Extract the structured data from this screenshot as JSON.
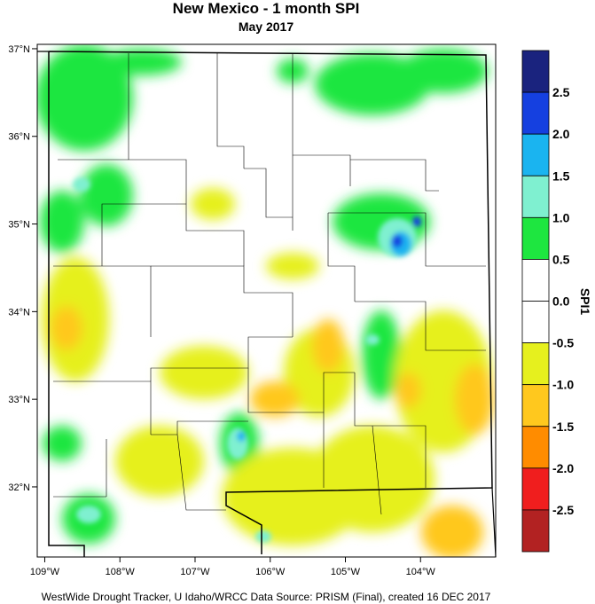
{
  "title": "New Mexico - 1 month SPI",
  "subtitle": "May 2017",
  "credit": "WestWide Drought Tracker, U Idaho/WRCC Data Source: PRISM (Final), created 16 DEC 2017",
  "map": {
    "region": "New Mexico",
    "variable": "SPI1",
    "lat_range": [
      31.2,
      37.05
    ],
    "lon_range": [
      -109.1,
      -103.0
    ],
    "lat_ticks": [
      {
        "value": 32,
        "label": "32°N"
      },
      {
        "value": 33,
        "label": "33°N"
      },
      {
        "value": 34,
        "label": "34°N"
      },
      {
        "value": 35,
        "label": "35°N"
      },
      {
        "value": 36,
        "label": "36°N"
      },
      {
        "value": 37,
        "label": "37°N"
      }
    ],
    "lon_ticks": [
      {
        "value": -109,
        "label": "109°W"
      },
      {
        "value": -108,
        "label": "108°W"
      },
      {
        "value": -107,
        "label": "107°W"
      },
      {
        "value": -106,
        "label": "106°W"
      },
      {
        "value": -105,
        "label": "105°W"
      },
      {
        "value": -104,
        "label": "104°W"
      }
    ]
  },
  "legend": {
    "title": "SPI1",
    "labels": [
      "2.5",
      "2.0",
      "1.5",
      "1.0",
      "0.5",
      "0.0",
      "-0.5",
      "-1.0",
      "-1.5",
      "-2.0",
      "-2.5"
    ],
    "colors": [
      "#1a237e",
      "#1540e0",
      "#1ab4f0",
      "#7ff0d0",
      "#1ee640",
      "#ffffff",
      "#ffffff",
      "#e6f01e",
      "#ffc81e",
      "#ff8c00",
      "#f01e1e",
      "#b22222"
    ]
  }
}
